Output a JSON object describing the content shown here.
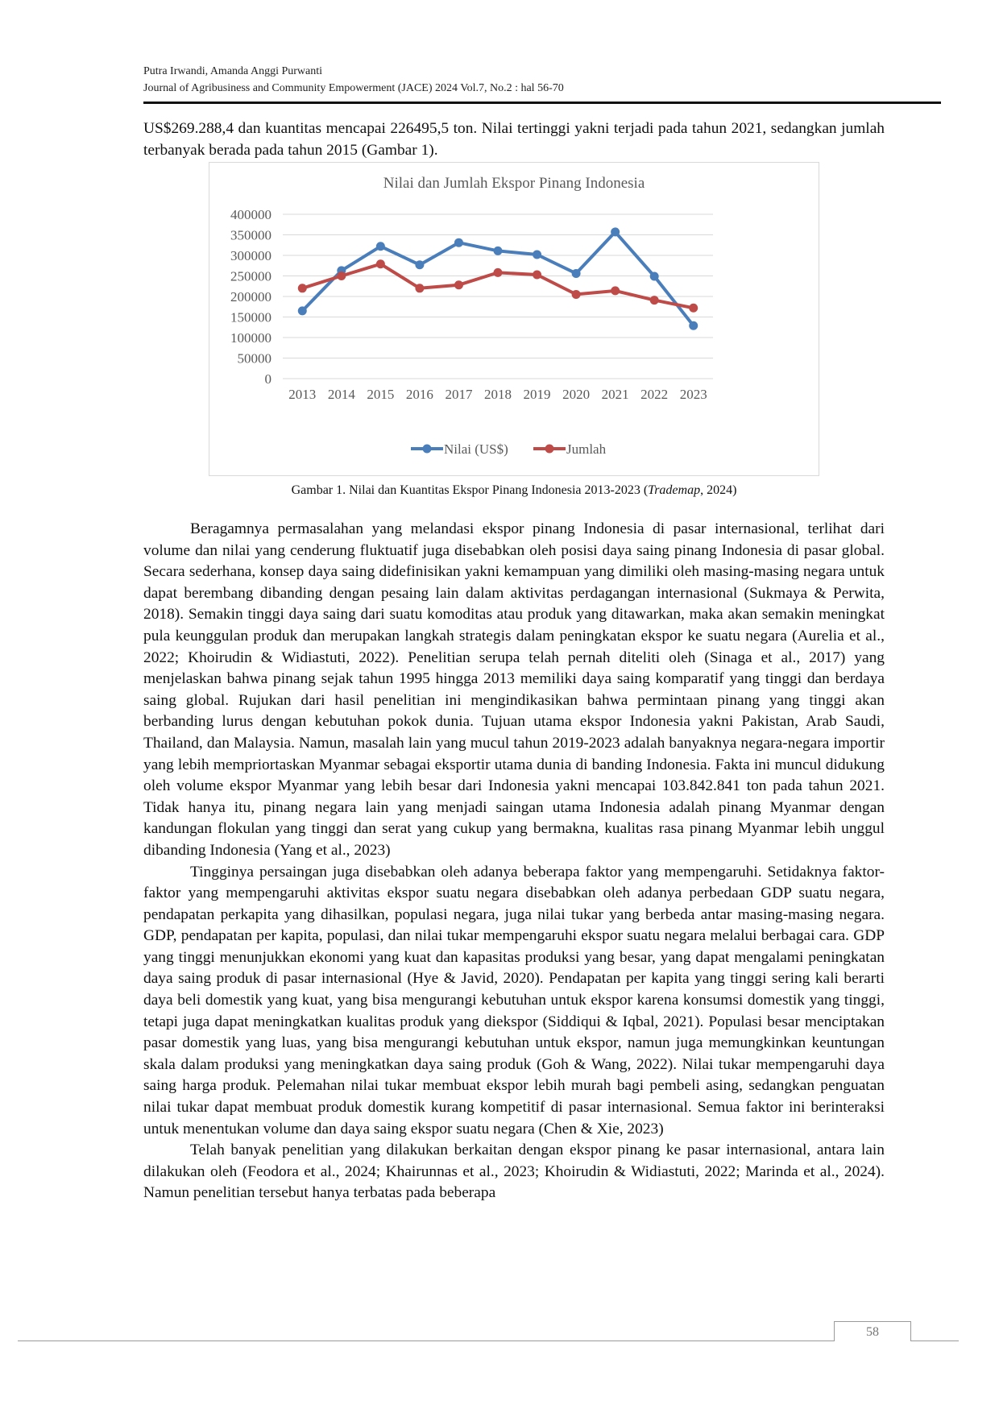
{
  "header": {
    "authors": "Putra Irwandi, Amanda Anggi Purwanti",
    "journal": "Journal of Agribusiness and Community Empowerment (JACE) 2024 Vol.7, No.2 : hal 56-70"
  },
  "intro_paragraph": "US$269.288,4 dan kuantitas mencapai 226495,5 ton. Nilai tertinggi yakni terjadi pada tahun 2021, sedangkan jumlah terbanyak berada pada tahun 2015 (Gambar 1).",
  "figure": {
    "caption_prefix": "Gambar 1. Nilai dan Kuantitas Ekspor Pinang Indonesia 2013-2023 (",
    "caption_source": "Trademap",
    "caption_suffix": ", 2024)"
  },
  "chart_data": {
    "type": "line",
    "title": "Nilai dan Jumlah Ekspor Pinang Indonesia",
    "categories": [
      "2013",
      "2014",
      "2015",
      "2016",
      "2017",
      "2018",
      "2019",
      "2020",
      "2021",
      "2022",
      "2023"
    ],
    "series": [
      {
        "name": "Nilai (US$)",
        "color": "#4a7ebb",
        "values": [
          165000,
          263000,
          322000,
          277000,
          331000,
          311000,
          302000,
          256000,
          357000,
          249000,
          129000
        ]
      },
      {
        "name": "Jumlah",
        "color": "#be4b48",
        "values": [
          220000,
          250000,
          279000,
          220000,
          228000,
          258000,
          253000,
          205000,
          214000,
          191000,
          172000
        ]
      }
    ],
    "ylim": [
      0,
      400000
    ],
    "yticks": [
      "0",
      "50000",
      "100000",
      "150000",
      "200000",
      "250000",
      "300000",
      "350000",
      "400000"
    ],
    "xlabel": "",
    "ylabel": "",
    "grid": true,
    "legend_position": "bottom"
  },
  "paragraphs": [
    "Beragamnya permasalahan yang melandasi ekspor pinang Indonesia di pasar internasional, terlihat dari volume dan nilai yang cenderung fluktuatif juga disebabkan oleh posisi daya saing pinang Indonesia di pasar global. Secara sederhana, konsep daya saing didefinisikan yakni kemampuan yang dimiliki oleh masing-masing negara untuk dapat berembang dibanding dengan pesaing lain dalam aktivitas perdagangan internasional (Sukmaya & Perwita, 2018). Semakin tinggi daya saing dari suatu komoditas atau produk yang ditawarkan, maka akan semakin meningkat pula keunggulan produk dan merupakan langkah strategis dalam peningkatan ekspor ke suatu negara (Aurelia et al., 2022; Khoirudin & Widiastuti, 2022). Penelitian serupa telah pernah diteliti oleh (Sinaga et al., 2017) yang menjelaskan bahwa pinang sejak tahun 1995 hingga 2013 memiliki daya saing komparatif yang tinggi dan berdaya saing global. Rujukan dari hasil penelitian ini mengindikasikan bahwa permintaan pinang yang tinggi akan berbanding lurus dengan kebutuhan pokok dunia. Tujuan utama ekspor Indonesia yakni Pakistan, Arab Saudi, Thailand, dan Malaysia. Namun, masalah lain yang mucul tahun 2019-2023 adalah banyaknya negara-negara importir yang lebih mempriortaskan Myanmar sebagai eksportir utama dunia di banding Indonesia. Fakta ini muncul didukung oleh volume ekspor Myanmar yang lebih besar dari Indonesia yakni mencapai 103.842.841 ton pada tahun 2021. Tidak hanya itu, pinang negara lain yang menjadi saingan utama Indonesia adalah pinang Myanmar dengan kandungan flokulan yang tinggi dan serat yang cukup yang bermakna, kualitas rasa pinang Myanmar lebih unggul dibanding Indonesia (Yang et al., 2023)",
    "Tingginya persaingan juga disebabkan oleh adanya beberapa faktor yang mempengaruhi. Setidaknya faktor-faktor yang mempengaruhi aktivitas ekspor suatu negara disebabkan oleh adanya perbedaan GDP suatu negara, pendapatan perkapita yang dihasilkan, populasi negara, juga nilai tukar yang berbeda antar masing-masing negara. GDP, pendapatan per kapita, populasi, dan nilai tukar mempengaruhi ekspor suatu negara melalui berbagai cara. GDP yang tinggi menunjukkan ekonomi yang kuat dan kapasitas produksi yang besar, yang dapat mengalami peningkatan daya saing produk di pasar internasional (Hye & Javid, 2020). Pendapatan per kapita yang tinggi sering kali berarti daya beli domestik yang kuat, yang bisa mengurangi kebutuhan untuk ekspor karena konsumsi domestik yang tinggi, tetapi juga dapat meningkatkan kualitas produk yang diekspor (Siddiqui & Iqbal, 2021). Populasi besar menciptakan pasar domestik yang luas, yang bisa mengurangi kebutuhan untuk ekspor, namun juga memungkinkan keuntungan skala dalam produksi yang meningkatkan daya saing produk (Goh & Wang, 2022). Nilai tukar mempengaruhi daya saing harga produk. Pelemahan nilai tukar membuat ekspor lebih murah bagi pembeli asing, sedangkan penguatan nilai tukar dapat membuat produk domestik kurang kompetitif di pasar internasional. Semua faktor ini berinteraksi untuk menentukan volume dan daya saing ekspor suatu negara (Chen & Xie, 2023)",
    "Telah banyak penelitian yang dilakukan berkaitan dengan ekspor pinang ke pasar internasional, antara lain dilakukan oleh (Feodora et al., 2024; Khairunnas et al., 2023; Khoirudin & Widiastuti, 2022; Marinda et al., 2024). Namun penelitian tersebut hanya terbatas pada beberapa"
  ],
  "page_number": "58"
}
